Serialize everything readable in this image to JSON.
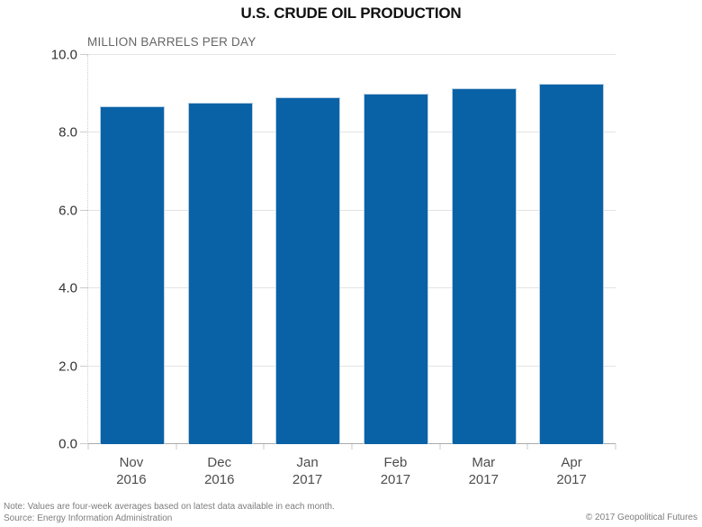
{
  "header": {
    "title": "U.S. CRUDE OIL PRODUCTION"
  },
  "chart_data": {
    "type": "bar",
    "title": "U.S. CRUDE OIL PRODUCTION",
    "ylabel": "MILLION BARRELS PER DAY",
    "xlabel": "",
    "categories": [
      "Nov 2016",
      "Dec 2016",
      "Jan 2017",
      "Feb 2017",
      "Mar 2017",
      "Apr 2017"
    ],
    "values": [
      8.68,
      8.77,
      8.92,
      9.0,
      9.14,
      9.26
    ],
    "ylim": [
      0,
      10
    ],
    "yticks": [
      "0.0",
      "2.0",
      "4.0",
      "6.0",
      "8.0",
      "10.0"
    ],
    "grid": true,
    "legend": false,
    "bar_color": "#0a62a6",
    "bar_border_color": "#b7cfe3"
  },
  "footer": {
    "note": "Note: Values are four-week averages based on latest data available in each month.",
    "source": "Source: Energy Information Administration",
    "copyright": "© 2017 Geopolitical Futures"
  },
  "colors": {
    "accent": "#0a62a6",
    "gridline": "#e3e3e3",
    "baseline": "#ababab",
    "title_text": "#111111",
    "axis_text": "#4d4d4d",
    "muted_text": "#7d7d7d"
  }
}
